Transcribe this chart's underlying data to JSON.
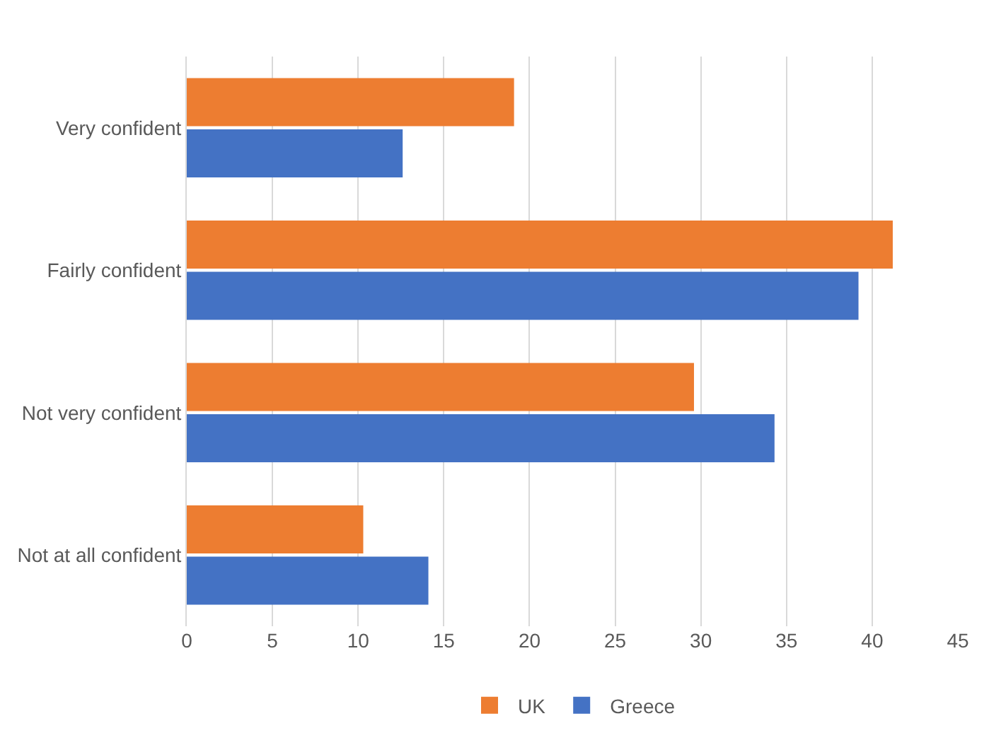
{
  "chart_data": {
    "type": "bar",
    "orientation": "horizontal",
    "categories": [
      "Very confident",
      "Fairly confident",
      "Not very confident",
      "Not at all confident"
    ],
    "series": [
      {
        "name": "UK",
        "color": "#ed7d31",
        "values": [
          19.1,
          41.2,
          29.6,
          10.3
        ]
      },
      {
        "name": "Greece",
        "color": "#4472c4",
        "values": [
          12.6,
          39.2,
          34.3,
          14.1
        ]
      }
    ],
    "xlim": [
      0,
      45
    ],
    "xticks": [
      0,
      5,
      10,
      15,
      20,
      25,
      30,
      35,
      40,
      45
    ],
    "grid": "x",
    "legend": "bottom"
  }
}
